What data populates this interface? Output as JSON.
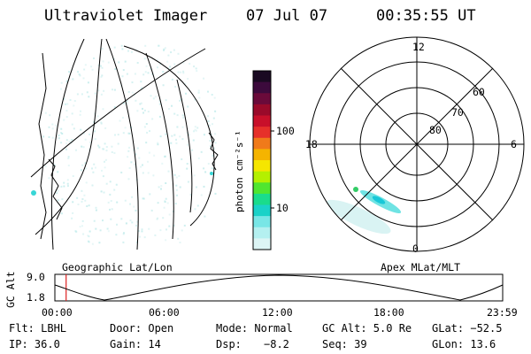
{
  "header": {
    "instrument": "Ultraviolet Imager",
    "date": "07 Jul 07",
    "time": "00:35:55 UT"
  },
  "colorbar": {
    "unit_label": "photon cm⁻²s⁻¹",
    "tick_100": "100",
    "tick_10": "10",
    "colors": [
      "#1a0a22",
      "#3c0a3c",
      "#6a0a3a",
      "#9a0a2a",
      "#c8102a",
      "#e6302a",
      "#f07a1a",
      "#f5b400",
      "#f5e600",
      "#b4f000",
      "#50e630",
      "#1adc8c",
      "#1ad2c8",
      "#78e6e6",
      "#b4f0f0",
      "#dcf5f5"
    ]
  },
  "geo_panel": {
    "label": "Geographic Lat/Lon"
  },
  "polar_panel": {
    "label": "Apex MLat/MLT",
    "mlt_12": "12",
    "mlt_18": "18",
    "mlt_6": "6",
    "mlt_0": "0",
    "lat_60": "60",
    "lat_70": "70",
    "lat_80": "80"
  },
  "altitude_plot": {
    "axis_label": "GC Alt",
    "y_top": "9.0",
    "y_bottom": "1.8",
    "x_ticks": [
      "00:00",
      "06:00",
      "12:00",
      "18:00",
      "23:59"
    ],
    "current_time_fraction": 0.025
  },
  "footer": {
    "filter": "Flt: LBHL",
    "door": "Door: Open",
    "mode": "Mode: Normal",
    "gc_alt": "GC Alt: 5.0 Re",
    "glat": "GLat: −52.5",
    "ip": "IP: 36.0",
    "gain": "Gain: 14",
    "dsp_label": "Dsp:",
    "dsp_value": "−8.2",
    "seq": "Seq: 39",
    "glon": "GLon:  13.6"
  }
}
